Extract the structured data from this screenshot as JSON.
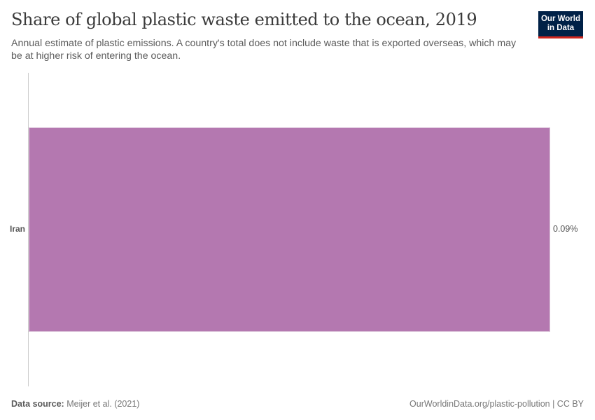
{
  "header": {
    "title": "Share of global plastic waste emitted to the ocean, 2019",
    "subtitle": "Annual estimate of plastic emissions. A country's total does not include waste that is exported overseas, which may be at higher risk of entering the ocean.",
    "logo_line1": "Our World",
    "logo_line2": "in Data"
  },
  "colors": {
    "bar": "#b478b0",
    "logo_bg": "#002147",
    "logo_accent": "#ce261e"
  },
  "footer": {
    "source_label": "Data source:",
    "source_value": "Meijer et al. (2021)",
    "link": "OurWorldinData.org/plastic-pollution | CC BY"
  },
  "chart_data": {
    "type": "bar",
    "orientation": "horizontal",
    "title": "Share of global plastic waste emitted to the ocean, 2019",
    "subtitle": "Annual estimate of plastic emissions. A country's total does not include waste that is exported overseas, which may be at higher risk of entering the ocean.",
    "categories": [
      "Iran"
    ],
    "values": [
      0.09
    ],
    "value_labels": [
      "0.09%"
    ],
    "unit": "%",
    "xlabel": "",
    "ylabel": "",
    "grid": false,
    "legend": "none"
  }
}
